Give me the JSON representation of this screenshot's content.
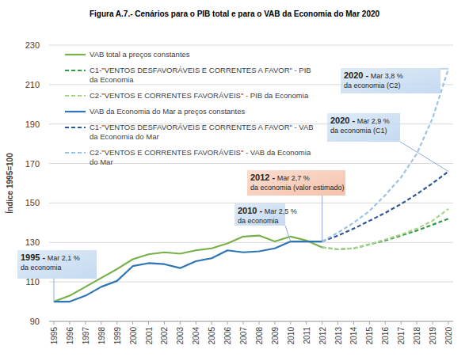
{
  "chart_data": {
    "type": "line",
    "title": "Figura A.7.- Cenários para o PIB total e para o VAB da Economia do Mar 2020",
    "y_label": "Índice 1995=100",
    "categories": [
      "1995",
      "1996",
      "1997",
      "1998",
      "1999",
      "2000",
      "2001",
      "2002",
      "2003",
      "2004",
      "2005",
      "2006",
      "2007",
      "2008",
      "2009",
      "2010",
      "2011",
      "2012",
      "2013",
      "2014",
      "2015",
      "2016",
      "2017",
      "2018",
      "2019",
      "2020"
    ],
    "ylim": [
      90,
      230
    ],
    "yticks": [
      90,
      110,
      130,
      150,
      170,
      190,
      210,
      230
    ],
    "grid": true,
    "legend": "top-left",
    "series": [
      {
        "name": "VAB total a preços constantes",
        "color": "#77b14a",
        "line_style": "solid",
        "values": [
          100,
          103,
          107.5,
          112,
          116.5,
          121.5,
          124,
          125,
          124.3,
          126,
          127,
          129.5,
          133,
          133.5,
          130.5,
          133,
          131,
          127.5,
          null,
          null,
          null,
          null,
          null,
          null,
          null,
          null
        ]
      },
      {
        "name": "C1-\"VENTOS DESFAVORÁVEIS E CORRENTES A FAVOR\" - PIB da Economia",
        "color": "#2f9a44",
        "line_style": "dashed",
        "values": [
          null,
          null,
          null,
          null,
          null,
          null,
          null,
          null,
          null,
          null,
          null,
          null,
          null,
          null,
          null,
          null,
          null,
          127.5,
          126.5,
          127,
          129,
          131,
          133.5,
          136,
          139,
          142
        ]
      },
      {
        "name": "C2-\"VENTOS E CORRENTES FAVORÁVEIS\" - PIB da Economia",
        "color": "#a8d48a",
        "line_style": "dashed",
        "values": [
          null,
          null,
          null,
          null,
          null,
          null,
          null,
          null,
          null,
          null,
          null,
          null,
          null,
          null,
          null,
          null,
          null,
          127.5,
          126.5,
          127,
          129,
          131.5,
          134,
          137,
          141,
          147
        ]
      },
      {
        "name": "VAB da Economia do Mar a preços constantes",
        "color": "#2e75b6",
        "line_style": "solid",
        "values": [
          100,
          100,
          103,
          107.5,
          110.5,
          118,
          119.5,
          119,
          117,
          120.5,
          122,
          126,
          125,
          125.5,
          127,
          130.5,
          130.5,
          130.5,
          null,
          null,
          null,
          null,
          null,
          null,
          null,
          null
        ]
      },
      {
        "name": "C1-\"VENTOS DESFAVORÁVEIS E CORRENTES A FAVOR\" - VAB da Economia do Mar",
        "color": "#2f5597",
        "line_style": "dashed",
        "values": [
          null,
          null,
          null,
          null,
          null,
          null,
          null,
          null,
          null,
          null,
          null,
          null,
          null,
          null,
          null,
          null,
          null,
          130.5,
          133.5,
          137,
          141,
          145,
          149.5,
          154.5,
          160,
          166
        ]
      },
      {
        "name": "C2-\"VENTOS E CORRENTES FAVORÁVEIS\" - VAB da Economia do Mar",
        "color": "#9dc3e6",
        "line_style": "dashed",
        "values": [
          null,
          null,
          null,
          null,
          null,
          null,
          null,
          null,
          null,
          null,
          null,
          null,
          null,
          null,
          null,
          null,
          null,
          130.5,
          135,
          140,
          146,
          154,
          163,
          175,
          193,
          218
        ]
      }
    ],
    "annotations": [
      {
        "lines": [
          "1995 - Mar 2,1 %",
          "da economia"
        ],
        "x": "1995",
        "y": 100,
        "color": "#c5daf1"
      },
      {
        "lines": [
          "2010 - Mar 2,5 %",
          "da economia"
        ],
        "x": "2010",
        "y": 130.5,
        "color": "#c5daf1"
      },
      {
        "lines": [
          "2012 - Mar 2,7 %",
          "da economia (valor estimado)"
        ],
        "x": "2012",
        "y": 130.5,
        "color": "#f6c2ab"
      },
      {
        "lines": [
          "2020 - Mar 2,9 %",
          "da economia (C1)"
        ],
        "x": "2020",
        "y": 166,
        "color": "#c5daf1"
      },
      {
        "lines": [
          "2020 - Mar 3,8 %",
          "da economia (C2)"
        ],
        "x": "2020",
        "y": 218,
        "color": "#c5daf1"
      }
    ]
  }
}
